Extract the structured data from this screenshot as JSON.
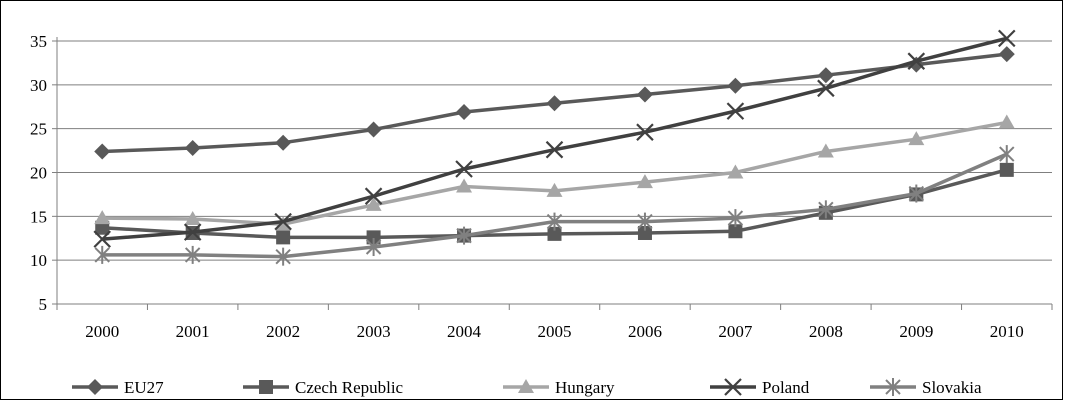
{
  "chart_data": {
    "type": "line",
    "title": "",
    "xlabel": "",
    "ylabel": "",
    "categories": [
      "2000",
      "2001",
      "2002",
      "2003",
      "2004",
      "2005",
      "2006",
      "2007",
      "2008",
      "2009",
      "2010"
    ],
    "ylim": [
      5,
      35
    ],
    "yticks": [
      5,
      10,
      15,
      20,
      25,
      30,
      35
    ],
    "grid": "horizontal",
    "legend_placement": "bottom",
    "series": [
      {
        "name": "EU27",
        "marker": "diamond",
        "color": "#595959",
        "values": [
          22.4,
          22.8,
          23.4,
          24.9,
          26.9,
          27.9,
          28.9,
          29.9,
          31.1,
          32.3,
          33.5
        ]
      },
      {
        "name": "Czech Republic",
        "marker": "square",
        "color": "#595959",
        "values": [
          13.7,
          13.1,
          12.6,
          12.6,
          12.8,
          13.0,
          13.1,
          13.3,
          15.4,
          17.5,
          20.3
        ]
      },
      {
        "name": "Hungary",
        "marker": "triangle",
        "color": "#a6a6a6",
        "values": [
          14.8,
          14.7,
          14.1,
          16.3,
          18.4,
          17.9,
          18.9,
          20.0,
          22.4,
          23.8,
          25.7
        ]
      },
      {
        "name": "Poland",
        "marker": "x",
        "color": "#404040",
        "values": [
          12.4,
          13.2,
          14.4,
          17.3,
          20.4,
          22.6,
          24.6,
          27.0,
          29.6,
          32.7,
          35.3
        ]
      },
      {
        "name": "Slovakia",
        "marker": "star",
        "color": "#808080",
        "values": [
          10.6,
          10.6,
          10.4,
          11.5,
          12.8,
          14.4,
          14.4,
          14.8,
          15.8,
          17.6,
          22.1
        ]
      }
    ]
  }
}
